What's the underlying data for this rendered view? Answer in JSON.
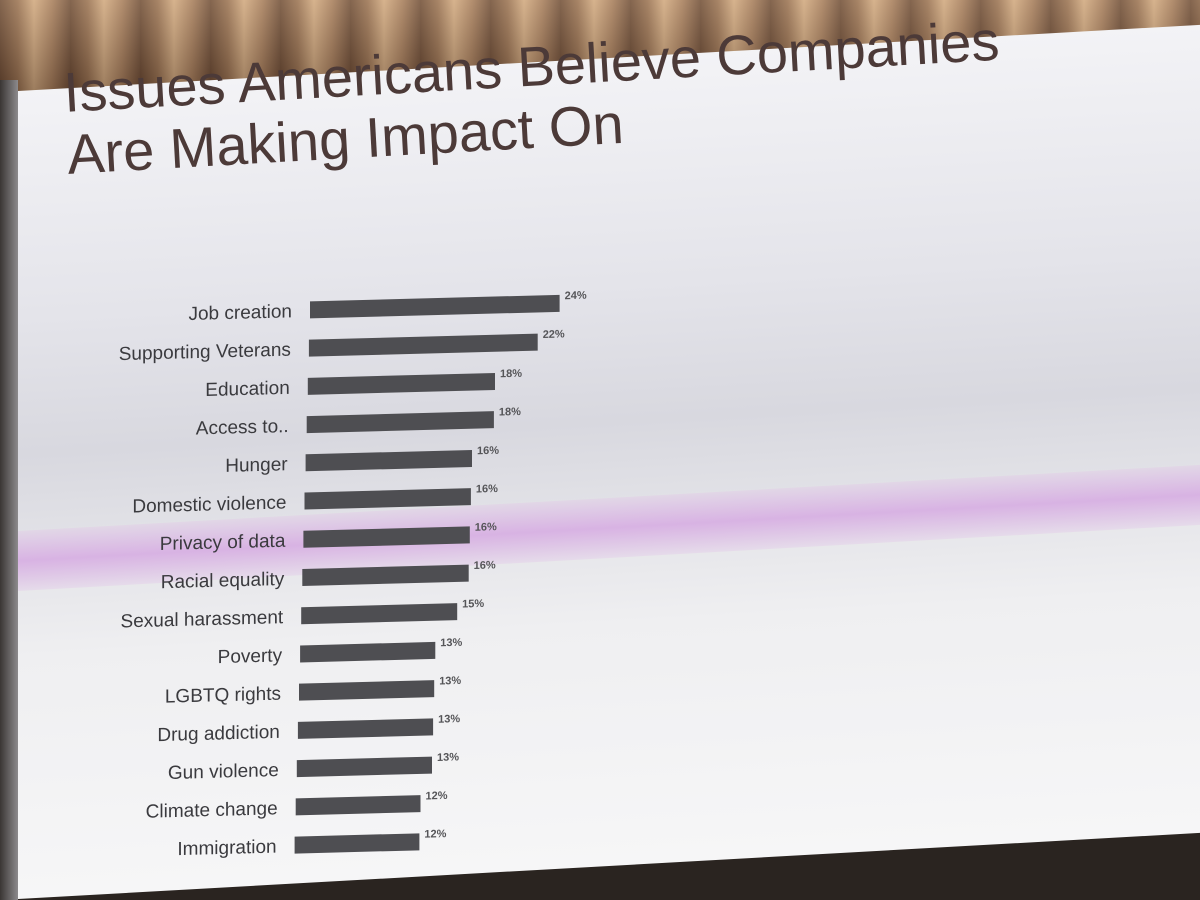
{
  "chart_data": {
    "type": "bar",
    "orientation": "horizontal",
    "title": "Issues Americans Believe Companies Are Making Impact On",
    "title_lines": [
      "Issues Americans Believe Companies",
      "Are Making Impact On"
    ],
    "categories": [
      "Job creation",
      "Supporting Veterans",
      "Education",
      "Access to..",
      "Hunger",
      "Domestic violence",
      "Privacy of data",
      "Racial equality",
      "Sexual harassment",
      "Poverty",
      "LGBTQ rights",
      "Drug addiction",
      "Gun violence",
      "Climate change",
      "Immigration"
    ],
    "values": [
      24,
      22,
      18,
      18,
      16,
      16,
      16,
      16,
      15,
      13,
      13,
      13,
      13,
      12,
      12
    ],
    "value_labels": [
      "24%",
      "22%",
      "18%",
      "18%",
      "16%",
      "16%",
      "16%",
      "16%",
      "15%",
      "13%",
      "13%",
      "13%",
      "13%",
      "12%",
      "12%"
    ],
    "unit": "%",
    "xlim": [
      0,
      30
    ],
    "grid": false,
    "legend": "none",
    "colors": {
      "bar": "#4e4e52",
      "title": "#4c3a38",
      "highlight_band": "#d6aae2"
    }
  }
}
